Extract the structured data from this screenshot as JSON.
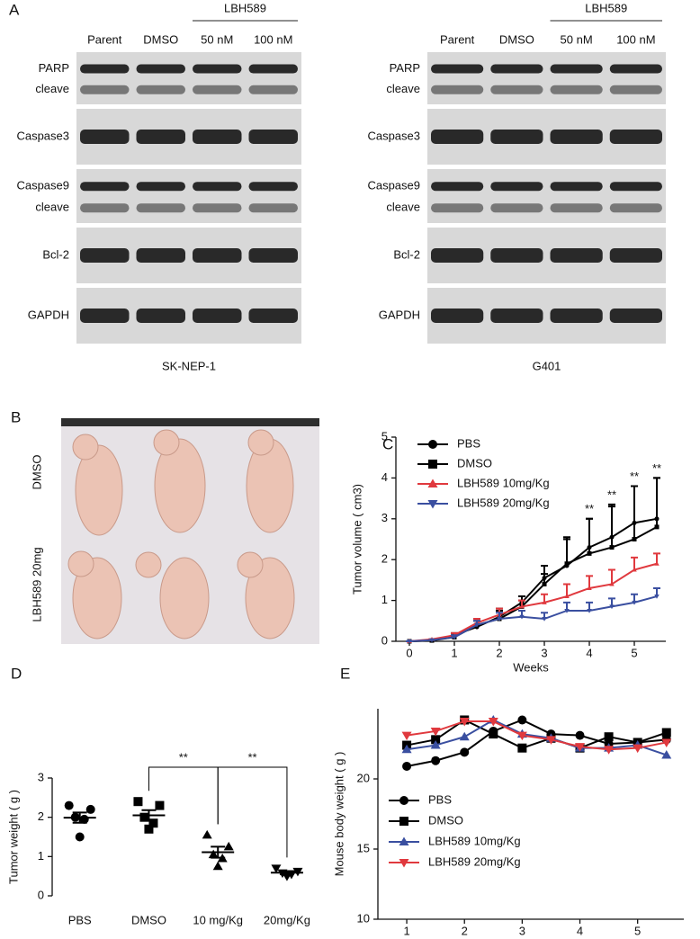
{
  "panels": [
    "A",
    "B",
    "C",
    "D",
    "E"
  ],
  "blots": [
    {
      "treatment": "LBH589",
      "lanes": [
        "Parent",
        "DMSO",
        "50 nM",
        "100 nM"
      ],
      "strips": [
        [
          "PARP",
          "cleave"
        ],
        [
          "Caspase3"
        ],
        [
          "Caspase9",
          "cleave"
        ],
        [
          "Bcl-2"
        ],
        [
          "GAPDH"
        ]
      ],
      "cell_line": "SK-NEP-1"
    },
    {
      "treatment": "LBH589",
      "lanes": [
        "Parent",
        "DMSO",
        "50 nM",
        "100 nM"
      ],
      "strips": [
        [
          "PARP",
          "cleave"
        ],
        [
          "Caspase3"
        ],
        [
          "Caspase9",
          "cleave"
        ],
        [
          "Bcl-2"
        ],
        [
          "GAPDH"
        ]
      ],
      "cell_line": "G401"
    }
  ],
  "photo_labels": [
    "DMSO",
    "LBH589 20mg"
  ],
  "chart_data": [
    {
      "type": "line",
      "y_label": "Tumor volume ( cm3)",
      "x_label": "Weeks",
      "x": [
        0,
        0.5,
        1,
        1.5,
        2,
        2.5,
        3,
        3.5,
        4,
        4.5,
        5,
        5.5
      ],
      "xlim": [
        -0.3,
        5.7
      ],
      "xticks": [
        0,
        1,
        2,
        3,
        4,
        5
      ],
      "ylim": [
        0,
        5
      ],
      "yticks": [
        0,
        1,
        2,
        3,
        4,
        5
      ],
      "legend": "upper left",
      "series": [
        {
          "name": "PBS",
          "color": "#000000",
          "marker": "circle",
          "values": [
            0,
            0.02,
            0.15,
            0.35,
            0.6,
            0.95,
            1.55,
            1.85,
            2.3,
            2.55,
            2.9,
            3.0
          ],
          "errors": [
            0,
            0,
            0.05,
            0.15,
            0.2,
            0.15,
            0.3,
            0.7,
            0.7,
            0.8,
            0.9,
            1.0
          ]
        },
        {
          "name": "DMSO",
          "color": "#000000",
          "marker": "square",
          "values": [
            0,
            0.02,
            0.1,
            0.4,
            0.55,
            0.85,
            1.4,
            1.9,
            2.15,
            2.3,
            2.5,
            2.8
          ],
          "errors": [
            0,
            0,
            0.05,
            0.15,
            0.2,
            0.15,
            0.25,
            0.6,
            0.85,
            1.0,
            1.3,
            1.2
          ]
        },
        {
          "name": "LBH589 10mg/Kg",
          "color": "#e0393e",
          "marker": "triangle-up",
          "values": [
            0,
            0.05,
            0.15,
            0.45,
            0.65,
            0.85,
            0.95,
            1.1,
            1.3,
            1.4,
            1.75,
            1.9
          ],
          "errors": [
            0,
            0,
            0.05,
            0.1,
            0.15,
            0.15,
            0.2,
            0.3,
            0.3,
            0.35,
            0.3,
            0.25
          ]
        },
        {
          "name": "LBH589 20mg/Kg",
          "color": "#3a4fa0",
          "marker": "triangle-down",
          "values": [
            0,
            0.03,
            0.1,
            0.4,
            0.55,
            0.6,
            0.55,
            0.75,
            0.75,
            0.85,
            0.95,
            1.1
          ],
          "errors": [
            0,
            0,
            0.05,
            0.1,
            0.15,
            0.15,
            0.15,
            0.2,
            0.2,
            0.2,
            0.2,
            0.2
          ]
        }
      ],
      "annotations": [
        {
          "x": 4,
          "text": "**"
        },
        {
          "x": 4.5,
          "text": "**"
        },
        {
          "x": 5,
          "text": "**"
        },
        {
          "x": 5.5,
          "text": "**"
        }
      ]
    },
    {
      "type": "dot",
      "y_label": "Tumor weight ( g )",
      "categories": [
        "PBS",
        "DMSO",
        "10 mg/Kg",
        "20mg/Kg"
      ],
      "markers": [
        "circle",
        "square",
        "triangle-up",
        "triangle-down"
      ],
      "values": [
        [
          2.3,
          2.2,
          2.0,
          1.95,
          1.5
        ],
        [
          2.4,
          2.3,
          2.0,
          1.85,
          1.7
        ],
        [
          1.55,
          1.25,
          1.05,
          0.95,
          0.75
        ],
        [
          0.7,
          0.62,
          0.58,
          0.55,
          0.5
        ]
      ],
      "means": [
        1.99,
        2.05,
        1.11,
        0.59
      ],
      "sems": [
        0.13,
        0.13,
        0.14,
        0.04
      ],
      "ylim": [
        0,
        3
      ],
      "yticks": [
        0,
        1,
        2,
        3
      ],
      "comparisons": [
        {
          "pair": [
            1,
            2
          ],
          "text": "**"
        },
        {
          "pair": [
            2,
            3
          ],
          "text": "**"
        }
      ]
    },
    {
      "type": "line",
      "y_label": "Mouse body weight ( g )",
      "x_label": "Weeks",
      "x": [
        1,
        1.5,
        2,
        2.5,
        3,
        3.5,
        4,
        4.5,
        5,
        5.5
      ],
      "xlim": [
        0.5,
        5.8
      ],
      "xticks": [
        1,
        2,
        3,
        4,
        5
      ],
      "ylim": [
        10,
        25
      ],
      "yticks": [
        10,
        15,
        20
      ],
      "legend": "lower left",
      "series": [
        {
          "name": "PBS",
          "color": "#000000",
          "marker": "circle",
          "values": [
            20.9,
            21.3,
            21.9,
            23.4,
            24.2,
            23.2,
            23.1,
            22.5,
            22.6,
            22.8
          ]
        },
        {
          "name": "DMSO",
          "color": "#000000",
          "marker": "square",
          "values": [
            22.4,
            22.8,
            24.2,
            23.2,
            22.2,
            22.9,
            22.2,
            23.0,
            22.6,
            23.3
          ]
        },
        {
          "name": "LBH589 10mg/Kg",
          "color": "#3a4fa0",
          "marker": "triangle-up",
          "values": [
            22.1,
            22.4,
            23.0,
            24.2,
            23.2,
            22.9,
            22.2,
            22.2,
            22.4,
            21.7
          ]
        },
        {
          "name": "LBH589 20mg/Kg",
          "color": "#e0393e",
          "marker": "triangle-down",
          "values": [
            23.1,
            23.4,
            24.1,
            24.1,
            23.1,
            22.8,
            22.3,
            22.1,
            22.2,
            22.6
          ]
        }
      ]
    }
  ]
}
